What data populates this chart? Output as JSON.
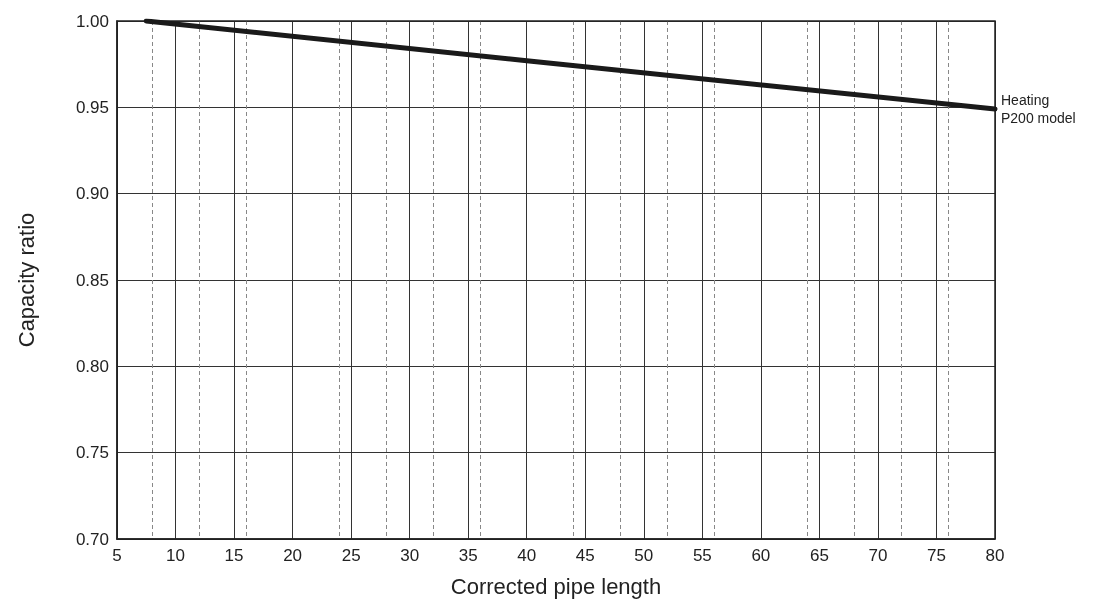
{
  "chart_data": {
    "type": "line",
    "xlabel": "Corrected pipe length",
    "ylabel": "Capacity ratio",
    "series": [
      {
        "name": "Heating\nP200 model",
        "color": "#1a1a1a",
        "x": [
          7.5,
          40,
          80
        ],
        "values": [
          1.0,
          0.977,
          0.949
        ]
      }
    ],
    "xlim": [
      5,
      80
    ],
    "xticks": [
      5,
      10,
      15,
      20,
      25,
      30,
      35,
      40,
      45,
      50,
      55,
      60,
      65,
      70,
      75,
      80
    ],
    "ylim": [
      0.7,
      1.0
    ],
    "yticks": [
      {
        "value": 0.7,
        "label": "0.70"
      },
      {
        "value": 0.75,
        "label": "0.75"
      },
      {
        "value": 0.8,
        "label": "0.80"
      },
      {
        "value": 0.85,
        "label": "0.85"
      },
      {
        "value": 0.9,
        "label": "0.90"
      },
      {
        "value": 0.95,
        "label": "0.95"
      },
      {
        "value": 1.0,
        "label": "1.00"
      }
    ],
    "grid": true,
    "marker": "none",
    "line_style": "solid",
    "legend": false
  }
}
